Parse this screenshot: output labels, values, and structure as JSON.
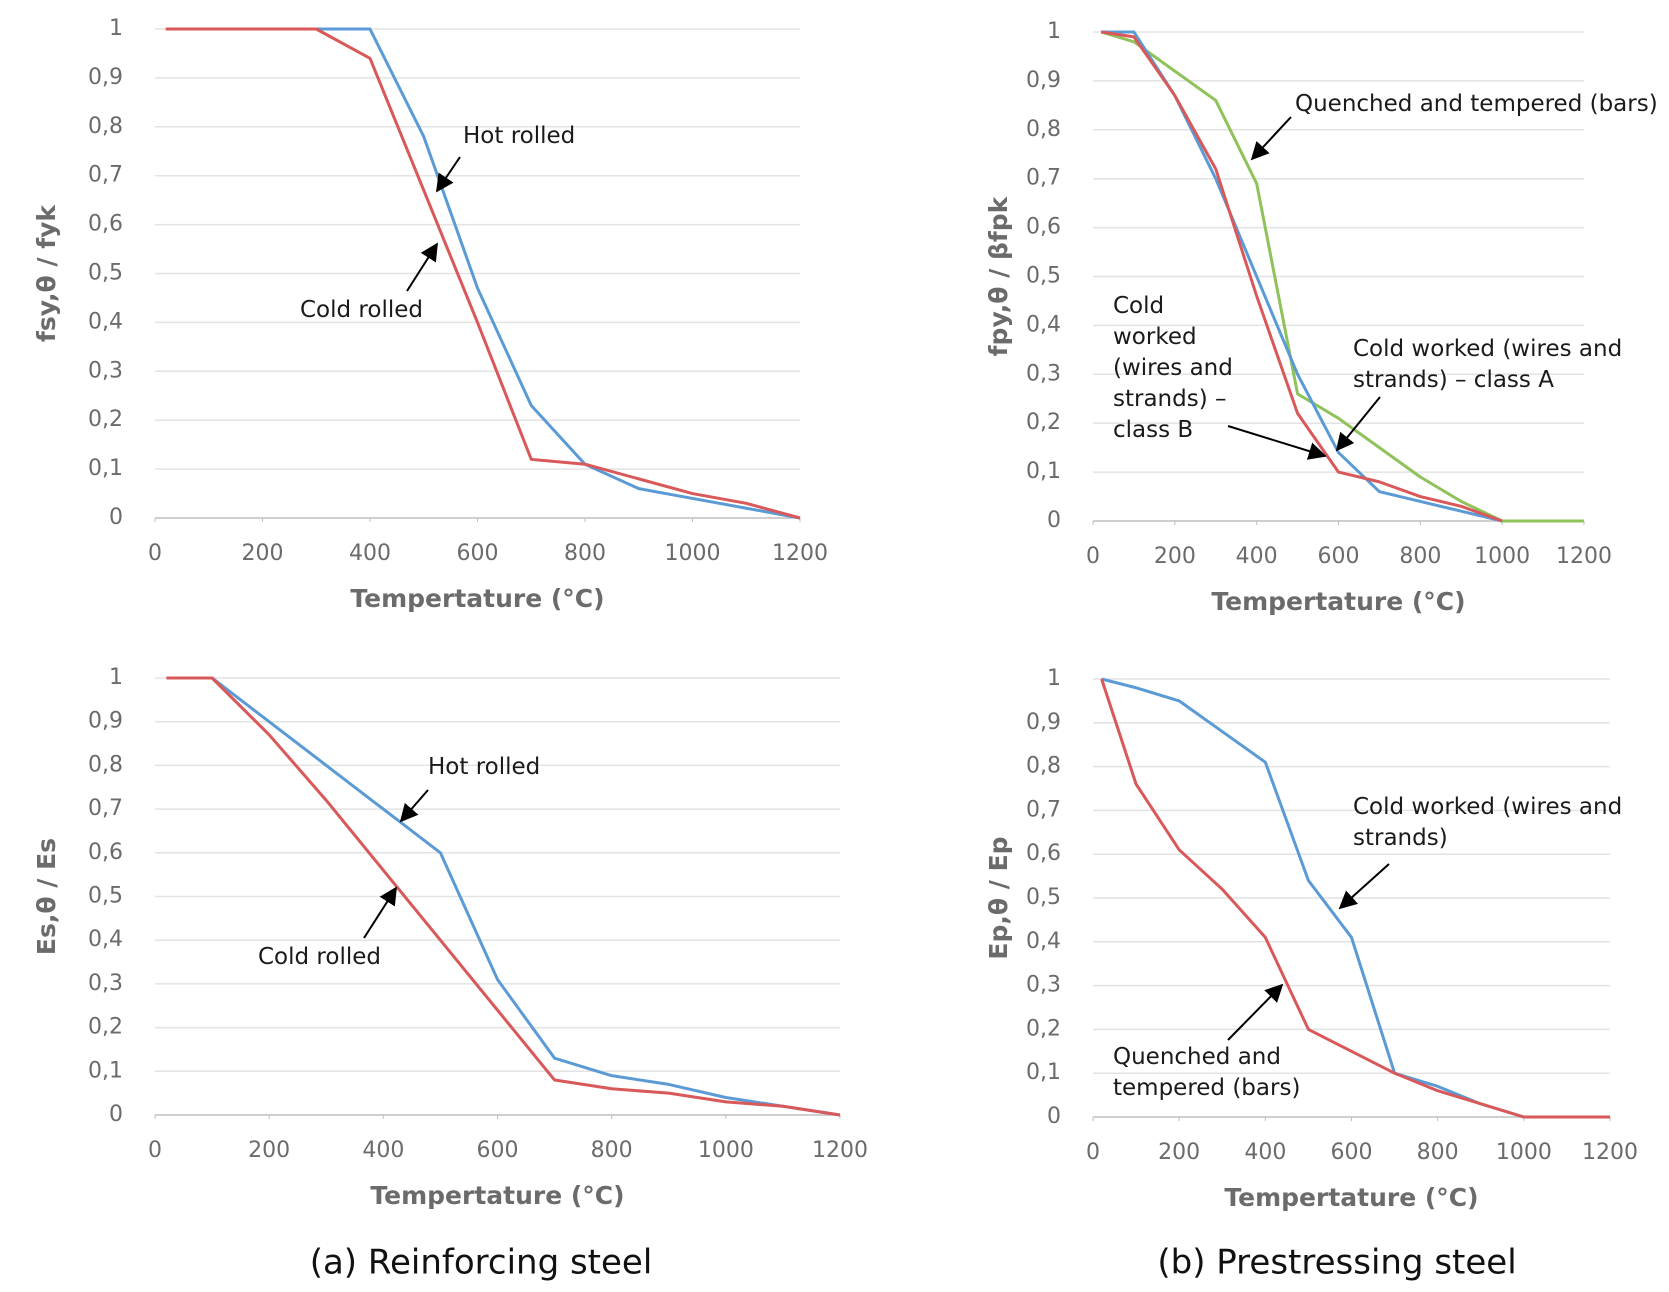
{
  "captions": [
    "(a) Reinforcing steel",
    "(b) Prestressing steel"
  ],
  "chart_data": [
    {
      "type": "line",
      "ylabel": "fsy,θ / fyk",
      "xlabel": "Tempertature (°C)",
      "x": [
        20,
        100,
        200,
        300,
        400,
        500,
        600,
        700,
        800,
        900,
        1000,
        1100,
        1200
      ],
      "series": [
        {
          "name": "Hot rolled",
          "color": "#5b9bd5",
          "values": [
            1,
            1,
            1,
            1,
            1,
            0.78,
            0.47,
            0.23,
            0.11,
            0.06,
            0.04,
            0.02,
            0
          ]
        },
        {
          "name": "Cold rolled",
          "color": "#d9585a",
          "values": [
            1,
            1,
            1,
            1,
            0.94,
            0.67,
            0.4,
            0.12,
            0.11,
            0.08,
            0.05,
            0.03,
            0
          ]
        }
      ],
      "xlim": [
        0,
        1200
      ],
      "xticks": [
        0,
        200,
        400,
        600,
        800,
        1000,
        1200
      ],
      "ylim": [
        0,
        1
      ],
      "yticks": [
        0,
        {
          "value": 0.1,
          "label": "0,1"
        },
        {
          "value": 0.2,
          "label": "0,2"
        },
        {
          "value": 0.3,
          "label": "0,3"
        },
        {
          "value": 0.4,
          "label": "0,4"
        },
        {
          "value": 0.5,
          "label": "0,5"
        },
        {
          "value": 0.6,
          "label": "0,6"
        },
        {
          "value": 0.7,
          "label": "0,7"
        },
        {
          "value": 0.8,
          "label": "0,8"
        },
        {
          "value": 0.9,
          "label": "0,9"
        },
        1
      ],
      "grid": true
    },
    {
      "type": "line",
      "ylabel": "Es,θ / Es",
      "xlabel": "Tempertature (°C)",
      "x": [
        20,
        100,
        200,
        300,
        400,
        500,
        600,
        700,
        800,
        900,
        1000,
        1100,
        1200
      ],
      "series": [
        {
          "name": "Hot rolled",
          "color": "#5b9bd5",
          "values": [
            1,
            1,
            0.9,
            0.8,
            0.7,
            0.6,
            0.31,
            0.13,
            0.09,
            0.07,
            0.04,
            0.02,
            0
          ]
        },
        {
          "name": "Cold rolled",
          "color": "#d9585a",
          "values": [
            1,
            1,
            0.87,
            0.72,
            0.56,
            0.4,
            0.24,
            0.08,
            0.06,
            0.05,
            0.03,
            0.02,
            0
          ]
        }
      ],
      "xlim": [
        0,
        1200
      ],
      "xticks": [
        0,
        200,
        400,
        600,
        800,
        1000,
        1200
      ],
      "ylim": [
        0,
        1
      ],
      "yticks": [
        0,
        {
          "value": 0.1,
          "label": "0,1"
        },
        {
          "value": 0.2,
          "label": "0,2"
        },
        {
          "value": 0.3,
          "label": "0,3"
        },
        {
          "value": 0.4,
          "label": "0,4"
        },
        {
          "value": 0.5,
          "label": "0,5"
        },
        {
          "value": 0.6,
          "label": "0,6"
        },
        {
          "value": 0.7,
          "label": "0,7"
        },
        {
          "value": 0.8,
          "label": "0,8"
        },
        {
          "value": 0.9,
          "label": "0,9"
        },
        1
      ],
      "grid": true
    },
    {
      "type": "line",
      "ylabel": "fpy,θ / βfpk",
      "xlabel": "Tempertature (°C)",
      "x": [
        20,
        100,
        200,
        300,
        400,
        500,
        600,
        700,
        800,
        900,
        1000,
        1100,
        1200
      ],
      "series": [
        {
          "name": "Quenched and tempered (bars)",
          "color": "#8fc25a",
          "values": [
            1,
            0.98,
            0.92,
            0.86,
            0.69,
            0.26,
            0.21,
            0.15,
            0.09,
            0.04,
            0,
            0,
            0
          ]
        },
        {
          "name": "Cold worked (wires and strands) – class A",
          "color": "#5b9bd5",
          "values": [
            1,
            1,
            0.87,
            0.7,
            0.5,
            0.3,
            0.14,
            0.06,
            0.04,
            0.02,
            0,
            null,
            null
          ]
        },
        {
          "name": "Cold worked (wires and strands) – class B",
          "color": "#d9585a",
          "values": [
            1,
            0.99,
            0.87,
            0.72,
            0.46,
            0.22,
            0.1,
            0.08,
            0.05,
            0.03,
            0,
            null,
            null
          ]
        }
      ],
      "xlim": [
        0,
        1200
      ],
      "xticks": [
        0,
        200,
        400,
        600,
        800,
        1000,
        1200
      ],
      "ylim": [
        0,
        1
      ],
      "yticks": [
        0,
        {
          "value": 0.1,
          "label": "0,1"
        },
        {
          "value": 0.2,
          "label": "0,2"
        },
        {
          "value": 0.3,
          "label": "0,3"
        },
        {
          "value": 0.4,
          "label": "0,4"
        },
        {
          "value": 0.5,
          "label": "0,5"
        },
        {
          "value": 0.6,
          "label": "0,6"
        },
        {
          "value": 0.7,
          "label": "0,7"
        },
        {
          "value": 0.8,
          "label": "0,8"
        },
        {
          "value": 0.9,
          "label": "0,9"
        },
        1
      ],
      "grid": true
    },
    {
      "type": "line",
      "ylabel": "Ep,θ / Ep",
      "xlabel": "Tempertature (°C)",
      "x": [
        20,
        100,
        200,
        300,
        400,
        500,
        600,
        700,
        800,
        900,
        1000,
        1100,
        1200
      ],
      "series": [
        {
          "name": "Cold worked (wires and strands)",
          "color": "#5b9bd5",
          "values": [
            1,
            0.98,
            0.95,
            0.88,
            0.81,
            0.54,
            0.41,
            0.1,
            0.07,
            0.03,
            0,
            0,
            0
          ]
        },
        {
          "name": "Quenched and tempered (bars)",
          "color": "#d9585a",
          "values": [
            1,
            0.76,
            0.61,
            0.52,
            0.41,
            0.2,
            0.15,
            0.1,
            0.06,
            0.03,
            0,
            0,
            0
          ]
        }
      ],
      "xlim": [
        0,
        1200
      ],
      "xticks": [
        0,
        200,
        400,
        600,
        800,
        1000,
        1200
      ],
      "ylim": [
        0,
        1
      ],
      "yticks": [
        0,
        {
          "value": 0.1,
          "label": "0,1"
        },
        {
          "value": 0.2,
          "label": "0,2"
        },
        {
          "value": 0.3,
          "label": "0,3"
        },
        {
          "value": 0.4,
          "label": "0,4"
        },
        {
          "value": 0.5,
          "label": "0,5"
        },
        {
          "value": 0.6,
          "label": "0,6"
        },
        {
          "value": 0.7,
          "label": "0,7"
        },
        {
          "value": 0.8,
          "label": "0,8"
        },
        {
          "value": 0.9,
          "label": "0,9"
        },
        1
      ],
      "grid": true
    }
  ]
}
